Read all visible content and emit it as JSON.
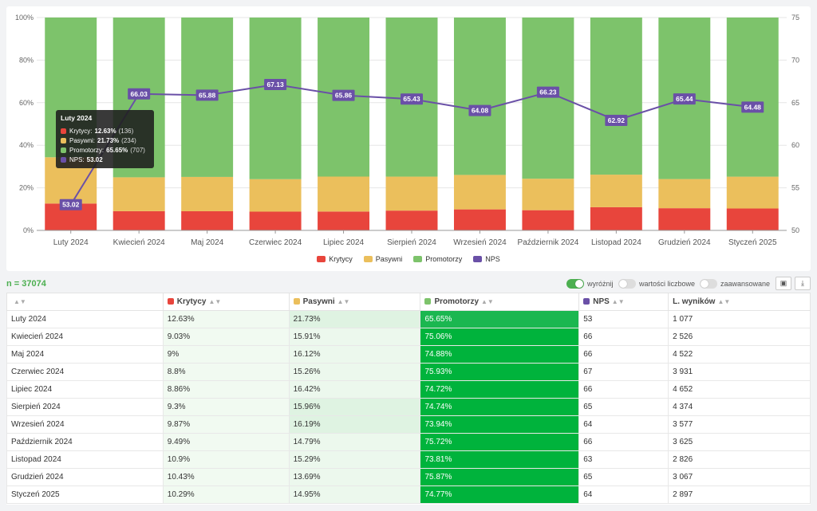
{
  "chart_data": {
    "type": "bar",
    "stacked": true,
    "categories": [
      "Luty 2024",
      "Kwiecień 2024",
      "Maj 2024",
      "Czerwiec 2024",
      "Lipiec 2024",
      "Sierpień 2024",
      "Wrzesień 2024",
      "Październik 2024",
      "Listopad 2024",
      "Grudzień 2024",
      "Styczeń 2025"
    ],
    "series": [
      {
        "name": "Krytycy",
        "type": "bar",
        "color": "#e8453c",
        "values": [
          12.63,
          9.03,
          9,
          8.8,
          8.86,
          9.3,
          9.87,
          9.49,
          10.9,
          10.43,
          10.29
        ]
      },
      {
        "name": "Pasywni",
        "type": "bar",
        "color": "#ebbf5c",
        "values": [
          21.73,
          15.91,
          16.12,
          15.26,
          16.42,
          15.96,
          16.19,
          14.79,
          15.29,
          13.69,
          14.95
        ]
      },
      {
        "name": "Promotorzy",
        "type": "bar",
        "color": "#7dc36b",
        "values": [
          65.65,
          75.06,
          74.88,
          75.93,
          74.72,
          74.74,
          73.94,
          75.72,
          73.81,
          75.87,
          74.77
        ]
      },
      {
        "name": "NPS",
        "type": "line",
        "axis": "right",
        "color": "#6a50a7",
        "values": [
          53.02,
          66.03,
          65.88,
          67.13,
          65.86,
          65.43,
          64.08,
          66.23,
          62.92,
          65.44,
          64.48
        ]
      }
    ],
    "y_left": {
      "range": [
        0,
        100
      ],
      "ticks": [
        "0%",
        "20%",
        "40%",
        "60%",
        "80%",
        "100%"
      ]
    },
    "y_right": {
      "range": [
        50,
        75
      ],
      "ticks": [
        "50",
        "55",
        "60",
        "65",
        "70",
        "75"
      ]
    },
    "legend_position": "bottom",
    "tooltip": {
      "title": "Luty 2024",
      "rows": [
        {
          "label": "Krytycy:",
          "value": "12.63%",
          "count": "(136)",
          "color": "#e8453c"
        },
        {
          "label": "Pasywni:",
          "value": "21.73%",
          "count": "(234)",
          "color": "#ebbf5c"
        },
        {
          "label": "Promotorzy:",
          "value": "65.65%",
          "count": "(707)",
          "color": "#7dc36b"
        },
        {
          "label": "NPS:",
          "value": "53.02",
          "count": "",
          "color": "#6a50a7"
        }
      ]
    }
  },
  "toolbar": {
    "n_label": "n = 37074",
    "toggle_highlight": "wyróżnij",
    "toggle_values": "wartości liczbowe",
    "toggle_advanced": "zaawansowane",
    "save_icon": "save-icon",
    "download_icon": "download-icon"
  },
  "table": {
    "headers": [
      "",
      "Krytycy",
      "Pasywni",
      "Promotorzy",
      "NPS",
      "L. wyników"
    ],
    "rows": [
      [
        "Luty 2024",
        "12.63%",
        "21.73%",
        "65.65%",
        "53",
        "1 077"
      ],
      [
        "Kwiecień 2024",
        "9.03%",
        "15.91%",
        "75.06%",
        "66",
        "2 526"
      ],
      [
        "Maj 2024",
        "9%",
        "16.12%",
        "74.88%",
        "66",
        "4 522"
      ],
      [
        "Czerwiec 2024",
        "8.8%",
        "15.26%",
        "75.93%",
        "67",
        "3 931"
      ],
      [
        "Lipiec 2024",
        "8.86%",
        "16.42%",
        "74.72%",
        "66",
        "4 652"
      ],
      [
        "Sierpień 2024",
        "9.3%",
        "15.96%",
        "74.74%",
        "65",
        "4 374"
      ],
      [
        "Wrzesień 2024",
        "9.87%",
        "16.19%",
        "73.94%",
        "64",
        "3 577"
      ],
      [
        "Październik 2024",
        "9.49%",
        "14.79%",
        "75.72%",
        "66",
        "3 625"
      ],
      [
        "Listopad 2024",
        "10.9%",
        "15.29%",
        "73.81%",
        "63",
        "2 826"
      ],
      [
        "Grudzień 2024",
        "10.43%",
        "13.69%",
        "75.87%",
        "65",
        "3 067"
      ],
      [
        "Styczeń 2025",
        "10.29%",
        "14.95%",
        "74.77%",
        "64",
        "2 897"
      ]
    ]
  }
}
